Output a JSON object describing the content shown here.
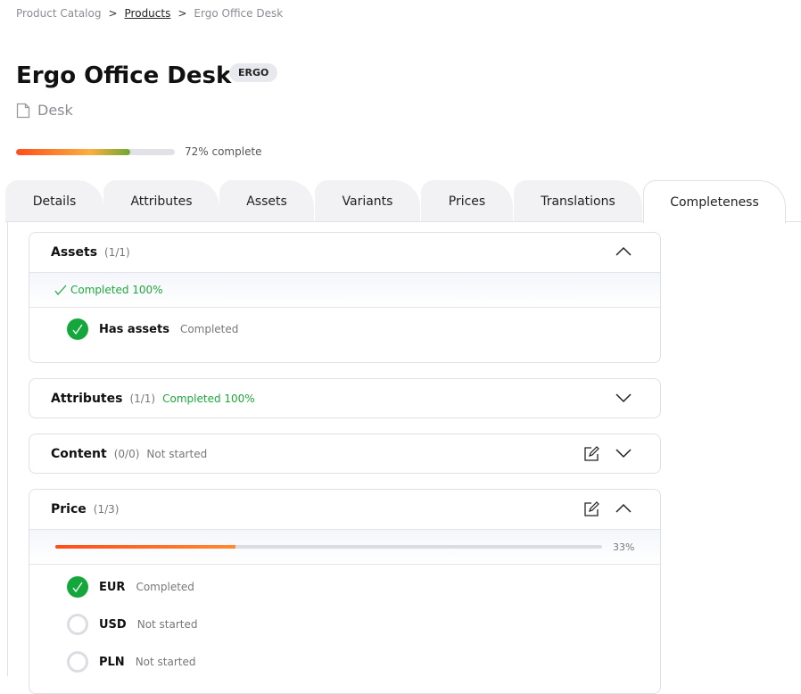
{
  "breadcrumb": {
    "items": [
      "Product Catalog",
      "Products",
      "Ergo Office Desk"
    ],
    "separator": ">"
  },
  "product": {
    "title": "Ergo Office Desk",
    "badge": "ERGO",
    "type": "Desk",
    "completeness_percent": 72,
    "completeness_label": "72% complete"
  },
  "tabs": [
    {
      "label": "Details"
    },
    {
      "label": "Attributes"
    },
    {
      "label": "Assets"
    },
    {
      "label": "Variants"
    },
    {
      "label": "Prices"
    },
    {
      "label": "Translations"
    },
    {
      "label": "Completeness",
      "active": true
    }
  ],
  "sections": {
    "assets": {
      "title": "Assets",
      "count": "(1/1)",
      "status": "Completed 100%",
      "expanded": true,
      "items": [
        {
          "label": "Has assets",
          "status": "Completed"
        }
      ]
    },
    "attributes": {
      "title": "Attributes",
      "count": "(1/1)",
      "status": "Completed 100%",
      "expanded": false
    },
    "content": {
      "title": "Content",
      "count": "(0/0)",
      "status": "Not started",
      "expanded": false
    },
    "price": {
      "title": "Price",
      "count": "(1/3)",
      "progress": 33,
      "progress_label": "33%",
      "expanded": true,
      "items": [
        {
          "label": "EUR",
          "status": "Completed"
        },
        {
          "label": "USD",
          "status": "Not started"
        },
        {
          "label": "PLN",
          "status": "Not started"
        }
      ]
    }
  },
  "colors": {
    "success": "#14a83c",
    "accent_start": "#ff4d1a",
    "accent_end": "#6ea833"
  }
}
